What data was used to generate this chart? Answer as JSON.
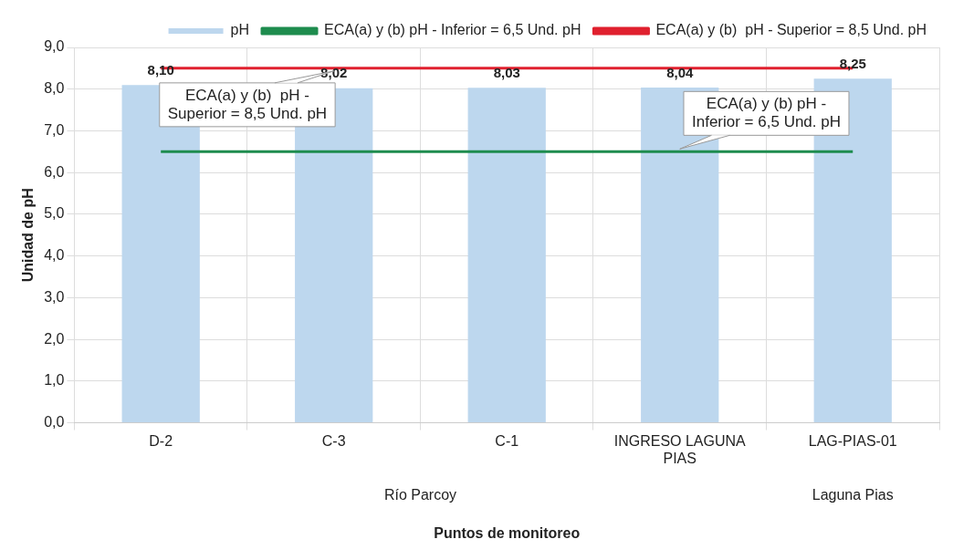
{
  "chart_data": {
    "type": "bar",
    "xlabel": "Puntos de monitoreo",
    "ylabel": "Unidad de pH",
    "categories": [
      "D-2",
      "C-3",
      "C-1",
      "INGRESO LAGUNA PIAS",
      "LAG-PIAS-01"
    ],
    "series": [
      {
        "name": "pH",
        "color": "#bdd7ee",
        "values": [
          8.1,
          8.02,
          8.03,
          8.04,
          8.25
        ],
        "value_labels": [
          "8,10",
          "8,02",
          "8,03",
          "8,04",
          "8,25"
        ]
      },
      {
        "name": "ECA(a) y (b) pH - Inferior = 6,5 Und. pH",
        "type": "line",
        "color": "#1e8c4e",
        "values": [
          6.5,
          6.5,
          6.5,
          6.5,
          6.5
        ]
      },
      {
        "name": "ECA(a) y (b)  pH - Superior = 8,5 Und. pH",
        "type": "line",
        "color": "#e0202e",
        "values": [
          8.5,
          8.5,
          8.5,
          8.5,
          8.5
        ]
      }
    ],
    "ylim": [
      0,
      9
    ],
    "yticks": [
      {
        "value": 0,
        "label": "0,0"
      },
      {
        "value": 1,
        "label": "1,0"
      },
      {
        "value": 2,
        "label": "2,0"
      },
      {
        "value": 3,
        "label": "3,0"
      },
      {
        "value": 4,
        "label": "4,0"
      },
      {
        "value": 5,
        "label": "5,0"
      },
      {
        "value": 6,
        "label": "6,0"
      },
      {
        "value": 7,
        "label": "7,0"
      },
      {
        "value": 8,
        "label": "8,0"
      },
      {
        "value": 9,
        "label": "9,0"
      }
    ],
    "grid": true,
    "legend": "top",
    "marker": "none",
    "annotations": [
      {
        "text": "ECA(a) y (b)  pH - Superior = 8,5 Und. pH",
        "x": "C-3",
        "y": 8.5
      },
      {
        "text": "ECA(a) y (b) pH - Inferior = 6,5 Und. pH",
        "x": "INGRESO LAGUNA PIAS",
        "y": 6.5
      },
      "Río Parcoy",
      "Laguna Pias"
    ]
  }
}
